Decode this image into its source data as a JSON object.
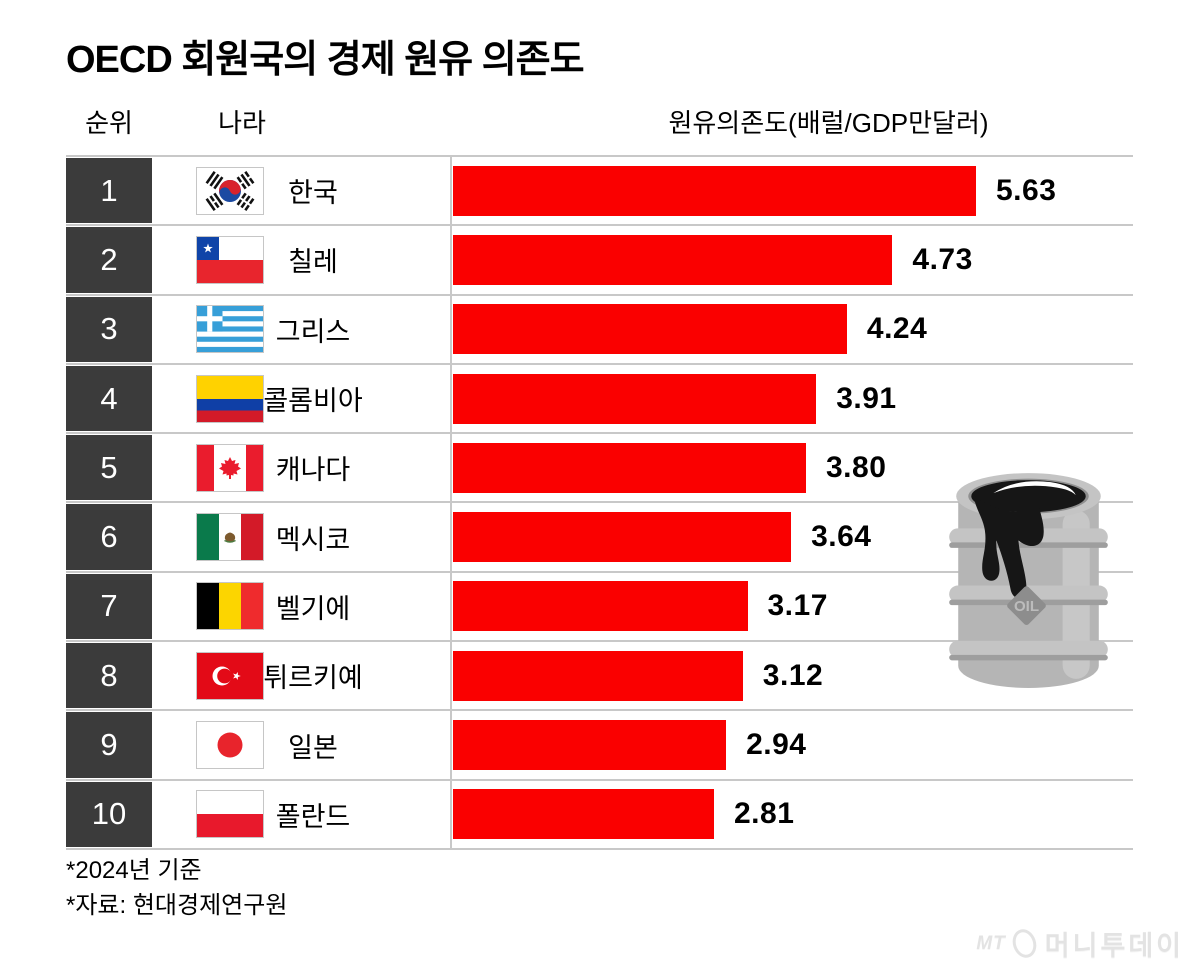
{
  "page": {
    "title": "OECD 회원국의 경제 원유 의존도",
    "footnotes": [
      "*2024년 기준",
      "*자료: 현대경제연구원"
    ],
    "watermark": {
      "prefix": "MT",
      "brand": "머니투데이"
    }
  },
  "table_headers": {
    "rank": "순위",
    "country": "나라",
    "value": "원유의존도(배럴/GDP만달러)"
  },
  "chart_data": {
    "type": "bar",
    "orientation": "horizontal",
    "title": "OECD 회원국의 경제 원유 의존도",
    "value_axis_label": "원유의존도(배럴/GDP만달러)",
    "xlim": [
      0,
      6.2
    ],
    "grid": false,
    "legend": "none",
    "bar_color": "#fa0000",
    "value_label_decimals": 2,
    "ranks": [
      1,
      2,
      3,
      4,
      5,
      6,
      7,
      8,
      9,
      10
    ],
    "categories": [
      "한국",
      "칠레",
      "그리스",
      "콜롬비아",
      "캐나다",
      "멕시코",
      "벨기에",
      "튀르키예",
      "일본",
      "폴란드"
    ],
    "values": [
      5.63,
      4.73,
      4.24,
      3.91,
      3.8,
      3.64,
      3.17,
      3.12,
      2.94,
      2.81
    ],
    "flags": [
      "south-korea",
      "chile",
      "greece",
      "colombia",
      "canada",
      "mexico",
      "belgium",
      "turkiye",
      "japan",
      "poland"
    ]
  },
  "barrel": {
    "label": "OIL"
  },
  "colors": {
    "bar": "#fa0000",
    "rank_badge_bg": "#3b3b3b",
    "rank_badge_text": "#ffffff",
    "grid_line": "#c8c8c8",
    "text": "#000000",
    "watermark": "#e3e3e3"
  }
}
